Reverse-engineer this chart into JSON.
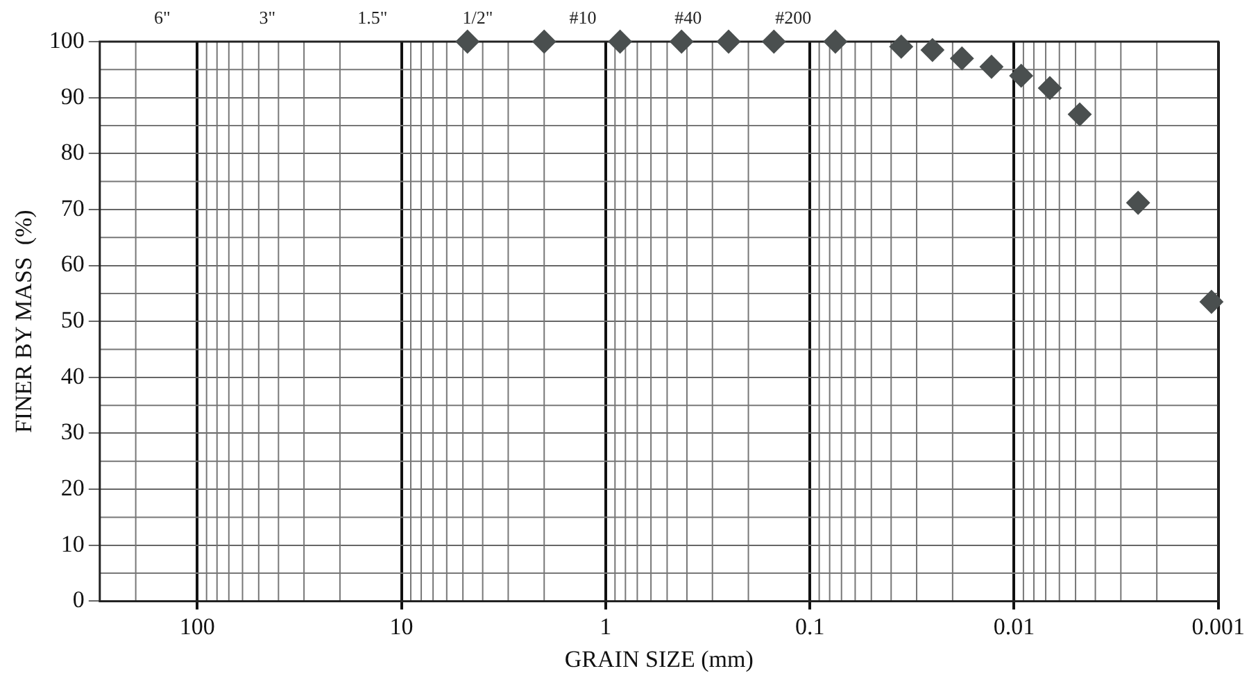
{
  "chart_data": {
    "type": "scatter",
    "xlabel": "GRAIN SIZE (mm)",
    "ylabel": "FINER BY MASS  (%)",
    "x": [
      4.75,
      2.0,
      0.85,
      0.425,
      0.25,
      0.15,
      0.075,
      0.0357,
      0.0251,
      0.018,
      0.0129,
      0.00923,
      0.00668,
      0.00477,
      0.00247,
      0.00108
    ],
    "values": [
      100,
      100,
      100,
      100,
      100,
      100,
      100,
      99.1,
      98.5,
      97.0,
      95.5,
      93.9,
      91.7,
      87.0,
      71.2,
      53.5
    ],
    "color": "#4a4f4f",
    "marker": "diamond",
    "log": "x",
    "xlim": [
      300,
      0.001
    ],
    "xticks": [
      100,
      10,
      1,
      0.1,
      0.01,
      0.001
    ],
    "ylim": [
      0,
      100
    ],
    "yticks": [
      0,
      10,
      20,
      30,
      40,
      50,
      60,
      70,
      80,
      90,
      100
    ],
    "grid": true,
    "legend": false,
    "annotations": [
      "6\"",
      "3\"",
      "1.5\"",
      "1/2\"",
      "#10",
      "#40",
      "#200"
    ]
  }
}
